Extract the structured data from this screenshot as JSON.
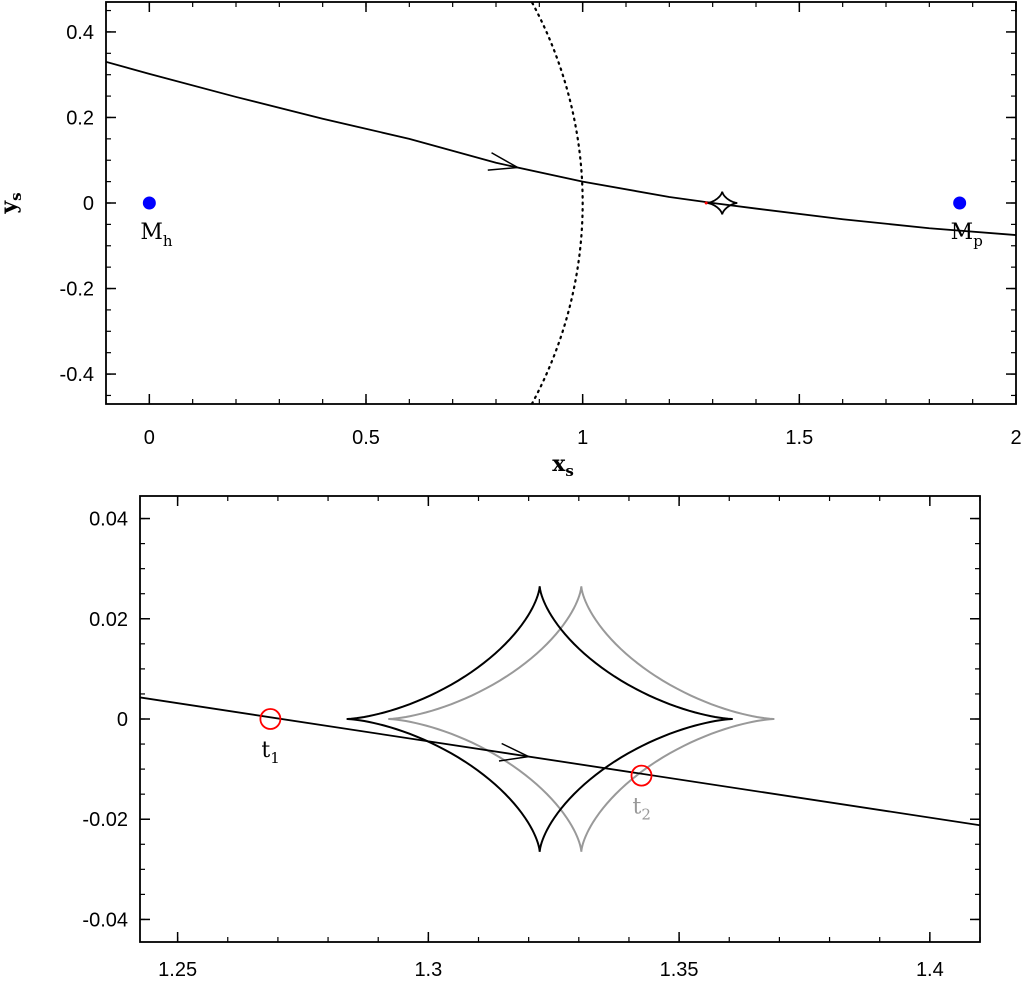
{
  "chart_data": [
    {
      "type": "line",
      "xlabel": "x",
      "xlabel_sub": "s",
      "ylabel": "y",
      "ylabel_sub": "s",
      "xlim": [
        -0.1,
        2.0
      ],
      "ylim": [
        -0.47,
        0.47
      ],
      "xticks": [
        0,
        0.5,
        1,
        1.5,
        2
      ],
      "xtick_labels": [
        "0",
        "0.5",
        "1",
        "1.5",
        "2"
      ],
      "yticks": [
        -0.4,
        -0.2,
        0,
        0.2,
        0.4
      ],
      "ytick_labels": [
        "-0.4",
        "-0.2",
        "0",
        "0.2",
        "0.4"
      ],
      "trajectory": {
        "x": [
          -0.1,
          0.0,
          0.2,
          0.4,
          0.6,
          0.8,
          1.0,
          1.2,
          1.3,
          1.4,
          1.6,
          1.8,
          2.0
        ],
        "y": [
          0.33,
          0.302,
          0.248,
          0.197,
          0.15,
          0.094,
          0.05,
          0.014,
          0.0,
          -0.013,
          -0.038,
          -0.059,
          -0.075
        ],
        "arrow_at_x": 0.85
      },
      "circle": {
        "center_x": 0.0,
        "center_y": 0.0,
        "radius": 1.0,
        "style": "dotted"
      },
      "caustic": {
        "center_x": 1.322,
        "center_y": 0.0,
        "half_width_x": 0.035,
        "half_height_y": 0.027
      },
      "masses": [
        {
          "label": "M",
          "sub": "h",
          "x": 0.0,
          "y": 0.0,
          "color": "#0000ff"
        },
        {
          "label": "M",
          "sub": "p",
          "x": 1.87,
          "y": 0.0,
          "color": "#0000ff"
        }
      ]
    },
    {
      "type": "line",
      "xlim": [
        1.2425,
        1.41
      ],
      "ylim": [
        -0.0445,
        0.0445
      ],
      "xticks": [
        1.25,
        1.3,
        1.35,
        1.4
      ],
      "xtick_labels": [
        "1.25",
        "1.3",
        "1.35",
        "1.4"
      ],
      "yticks": [
        -0.04,
        -0.02,
        0,
        0.02,
        0.04
      ],
      "ytick_labels": [
        "-0.04",
        "-0.02",
        "0",
        "0.02",
        "0.04"
      ],
      "trajectory": {
        "x": [
          1.2425,
          1.41
        ],
        "y": [
          0.0043,
          -0.0212
        ],
        "arrow_at_x": 1.32
      },
      "caustics": [
        {
          "center_x": 1.3222,
          "center_y": 0.0,
          "half_width_x": 0.0385,
          "half_height_y": 0.0265,
          "color": "#000000"
        },
        {
          "center_x": 1.3305,
          "center_y": 0.0,
          "half_width_x": 0.0385,
          "half_height_y": 0.0265,
          "color": "#999999"
        }
      ],
      "markers": [
        {
          "label": "t",
          "sub": "1",
          "x": 1.2685,
          "y": 0.0,
          "color": "#000000"
        },
        {
          "label": "t",
          "sub": "2",
          "x": 1.3425,
          "y": -0.0113,
          "color": "#999999"
        }
      ]
    }
  ],
  "colors": {
    "marker_ring": "#ff0000",
    "mass": "#0000ff",
    "secondary": "#999999"
  }
}
